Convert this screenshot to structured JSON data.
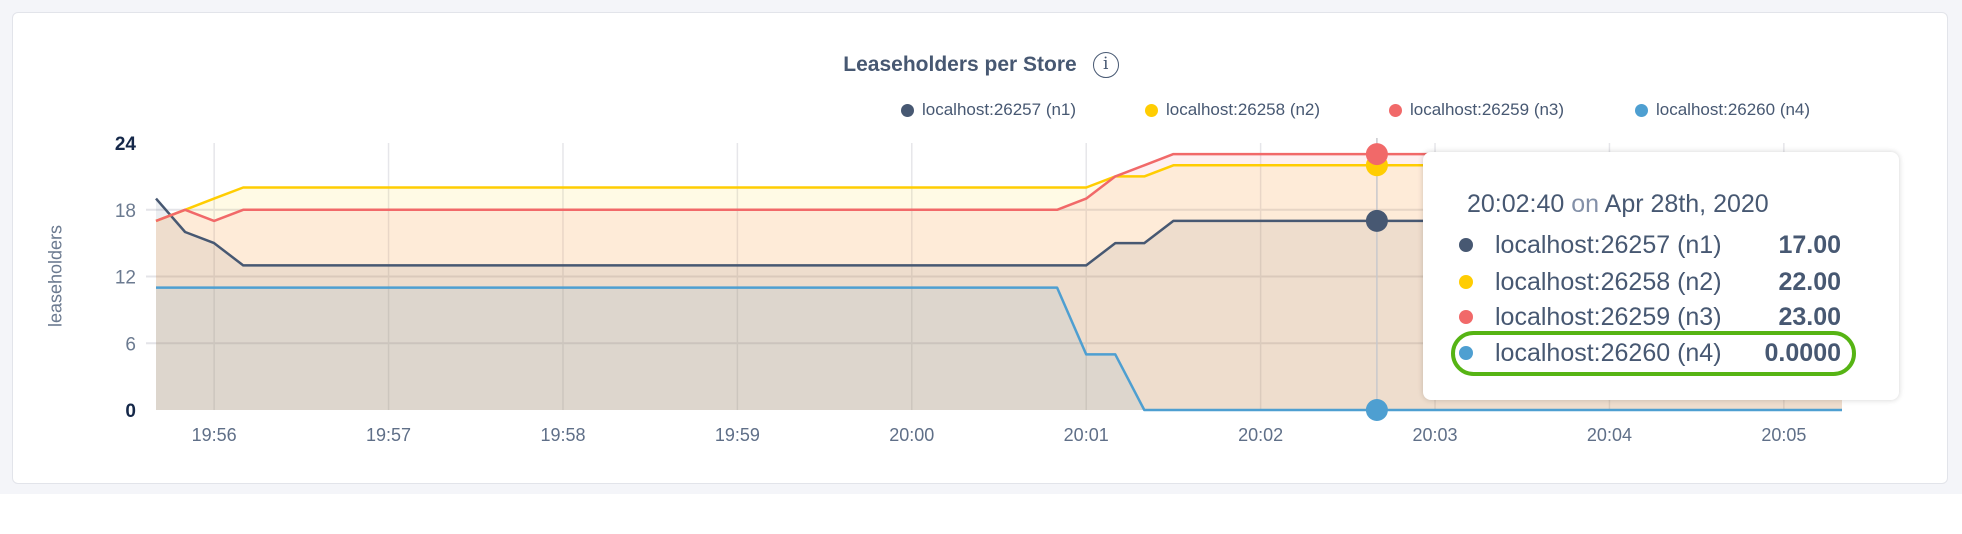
{
  "chart_data": {
    "type": "area",
    "title": "Leaseholders per Store",
    "info_icon": "info-icon",
    "ylabel": "leaseholders",
    "ylim": [
      0,
      24
    ],
    "yticks": [
      "0",
      "6",
      "12",
      "18",
      "24"
    ],
    "xticks": [
      "19:56",
      "19:57",
      "19:58",
      "19:59",
      "20:00",
      "20:01",
      "20:02",
      "20:03",
      "20:04",
      "20:05"
    ],
    "xlim": [
      "19:55:40",
      "20:05:20"
    ],
    "grid": true,
    "legend_position": "top-right",
    "x": [
      "19:55:40",
      "19:55:50",
      "19:56:00",
      "19:56:10",
      "19:56:20",
      "19:56:30",
      "19:56:40",
      "19:56:50",
      "19:57:00",
      "19:57:10",
      "19:57:20",
      "19:57:30",
      "19:57:40",
      "19:57:50",
      "19:58:00",
      "19:58:10",
      "19:58:20",
      "19:58:30",
      "19:58:40",
      "19:58:50",
      "19:59:00",
      "19:59:10",
      "19:59:20",
      "19:59:30",
      "19:59:40",
      "19:59:50",
      "20:00:00",
      "20:00:10",
      "20:00:20",
      "20:00:30",
      "20:00:40",
      "20:00:50",
      "20:01:00",
      "20:01:10",
      "20:01:20",
      "20:01:30",
      "20:01:40",
      "20:01:50",
      "20:02:00",
      "20:02:10",
      "20:02:20",
      "20:02:30",
      "20:02:40",
      "20:02:50",
      "20:03:00",
      "20:03:10",
      "20:03:20",
      "20:03:30",
      "20:03:40",
      "20:03:50",
      "20:04:00",
      "20:04:10",
      "20:04:20",
      "20:04:30",
      "20:04:40",
      "20:04:50",
      "20:05:00",
      "20:05:10",
      "20:05:20"
    ],
    "series": [
      {
        "name": "localhost:26257 (n1)",
        "color": "#475872",
        "values": [
          19,
          16,
          15,
          13,
          13,
          13,
          13,
          13,
          13,
          13,
          13,
          13,
          13,
          13,
          13,
          13,
          13,
          13,
          13,
          13,
          13,
          13,
          13,
          13,
          13,
          13,
          13,
          13,
          13,
          13,
          13,
          13,
          13,
          15,
          15,
          17,
          17,
          17,
          17,
          17,
          17,
          17,
          17,
          17,
          17,
          17,
          17,
          17,
          17,
          17,
          17,
          17,
          17,
          17,
          17,
          17,
          17,
          17,
          17
        ]
      },
      {
        "name": "localhost:26258 (n2)",
        "color": "#ffcd02",
        "values": [
          17,
          18,
          19,
          20,
          20,
          20,
          20,
          20,
          20,
          20,
          20,
          20,
          20,
          20,
          20,
          20,
          20,
          20,
          20,
          20,
          20,
          20,
          20,
          20,
          20,
          20,
          20,
          20,
          20,
          20,
          20,
          20,
          20,
          21,
          21,
          22,
          22,
          22,
          22,
          22,
          22,
          22,
          22,
          22,
          22,
          22,
          22,
          22,
          22,
          22,
          22,
          22,
          22,
          22,
          22,
          22,
          22,
          22,
          22
        ]
      },
      {
        "name": "localhost:26259 (n3)",
        "color": "#f16969",
        "values": [
          17,
          18,
          17,
          18,
          18,
          18,
          18,
          18,
          18,
          18,
          18,
          18,
          18,
          18,
          18,
          18,
          18,
          18,
          18,
          18,
          18,
          18,
          18,
          18,
          18,
          18,
          18,
          18,
          18,
          18,
          18,
          18,
          19,
          21,
          22,
          23,
          23,
          23,
          23,
          23,
          23,
          23,
          23,
          23,
          23,
          23,
          23,
          23,
          23,
          23,
          23,
          23,
          23,
          23,
          23,
          23,
          23,
          23,
          23
        ]
      },
      {
        "name": "localhost:26260 (n4)",
        "color": "#4e9fd1",
        "values": [
          11,
          11,
          11,
          11,
          11,
          11,
          11,
          11,
          11,
          11,
          11,
          11,
          11,
          11,
          11,
          11,
          11,
          11,
          11,
          11,
          11,
          11,
          11,
          11,
          11,
          11,
          11,
          11,
          11,
          11,
          11,
          11,
          5,
          5,
          0,
          0,
          0,
          0,
          0,
          0,
          0,
          0,
          0,
          0,
          0,
          0,
          0,
          0,
          0,
          0,
          0,
          0,
          0,
          0,
          0,
          0,
          0,
          0,
          0
        ]
      }
    ],
    "tooltip": {
      "hover_x": "20:02:40",
      "time": "20:02:40",
      "on": "on",
      "date": "Apr 28th, 2020",
      "rows": [
        {
          "label": "localhost:26257 (n1)",
          "value": "17.00"
        },
        {
          "label": "localhost:26258 (n2)",
          "value": "22.00"
        },
        {
          "label": "localhost:26259 (n3)",
          "value": "23.00"
        },
        {
          "label": "localhost:26260 (n4)",
          "value": "0.0000",
          "highlighted": true
        }
      ],
      "highlight_color": "#56b414"
    }
  }
}
